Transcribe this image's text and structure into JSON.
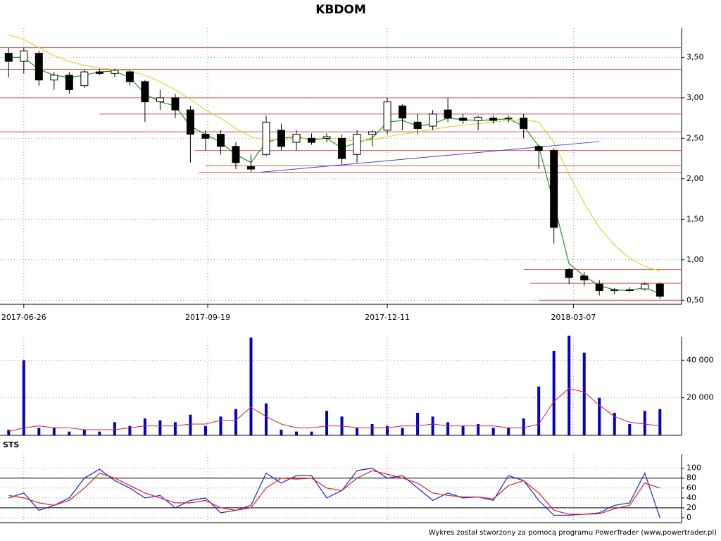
{
  "chart_data": [
    {
      "type": "candlestick",
      "title": "KBDOM",
      "x": [
        "2017-06-19",
        "2017-06-26",
        "2017-07-03",
        "2017-07-10",
        "2017-07-17",
        "2017-07-24",
        "2017-07-31",
        "2017-08-07",
        "2017-08-14",
        "2017-08-21",
        "2017-08-28",
        "2017-09-04",
        "2017-09-11",
        "2017-09-18",
        "2017-09-25",
        "2017-10-02",
        "2017-10-09",
        "2017-10-16",
        "2017-10-23",
        "2017-10-30",
        "2017-11-06",
        "2017-11-13",
        "2017-11-20",
        "2017-11-27",
        "2017-12-04",
        "2017-12-11",
        "2017-12-18",
        "2017-12-25",
        "2018-01-01",
        "2018-01-08",
        "2018-01-15",
        "2018-01-22",
        "2018-01-29",
        "2018-02-05",
        "2018-02-12",
        "2018-02-19",
        "2018-02-26",
        "2018-03-05",
        "2018-03-12",
        "2018-03-19",
        "2018-03-26",
        "2018-04-02",
        "2018-04-09",
        "2018-04-16"
      ],
      "open": [
        3.55,
        3.45,
        3.55,
        3.22,
        3.28,
        3.15,
        3.32,
        3.3,
        3.32,
        3.2,
        2.95,
        3.0,
        2.85,
        2.55,
        2.55,
        2.4,
        2.15,
        2.3,
        2.6,
        2.45,
        2.5,
        2.5,
        2.5,
        2.3,
        2.55,
        2.6,
        2.9,
        2.7,
        2.65,
        2.85,
        2.75,
        2.72,
        2.75,
        2.74,
        2.75,
        2.4,
        2.35,
        0.88,
        0.8,
        0.7,
        0.62,
        0.63,
        0.64,
        0.7
      ],
      "high": [
        3.62,
        3.62,
        3.58,
        3.32,
        3.32,
        3.35,
        3.36,
        3.36,
        3.34,
        3.22,
        3.1,
        3.05,
        2.9,
        2.6,
        2.6,
        2.45,
        2.3,
        2.78,
        2.68,
        2.6,
        2.56,
        2.56,
        2.55,
        2.6,
        2.6,
        3.0,
        2.92,
        2.8,
        2.85,
        3.0,
        2.8,
        2.78,
        2.78,
        2.78,
        2.8,
        2.42,
        2.38,
        0.9,
        0.85,
        0.75,
        0.65,
        0.66,
        0.72,
        0.72
      ],
      "low": [
        3.25,
        3.3,
        3.15,
        3.1,
        3.05,
        3.12,
        3.28,
        3.26,
        3.15,
        2.7,
        2.85,
        2.75,
        2.2,
        2.35,
        2.3,
        2.12,
        2.08,
        2.28,
        2.35,
        2.35,
        2.42,
        2.45,
        2.18,
        2.2,
        2.4,
        2.55,
        2.6,
        2.55,
        2.6,
        2.7,
        2.68,
        2.6,
        2.68,
        2.7,
        2.5,
        2.12,
        1.2,
        0.7,
        0.68,
        0.56,
        0.58,
        0.6,
        0.62,
        0.52
      ],
      "close": [
        3.45,
        3.58,
        3.22,
        3.28,
        3.1,
        3.32,
        3.3,
        3.34,
        3.2,
        2.95,
        3.0,
        2.85,
        2.55,
        2.5,
        2.4,
        2.2,
        2.12,
        2.7,
        2.4,
        2.55,
        2.45,
        2.52,
        2.25,
        2.55,
        2.58,
        2.95,
        2.75,
        2.62,
        2.8,
        2.75,
        2.72,
        2.76,
        2.72,
        2.75,
        2.62,
        2.35,
        1.4,
        0.78,
        0.75,
        0.62,
        0.63,
        0.62,
        0.7,
        0.55
      ],
      "ma": [
        {
          "color": "#1a9a1a",
          "values": [
            3.5,
            3.5,
            3.35,
            3.28,
            3.25,
            3.28,
            3.32,
            3.33,
            3.25,
            3.05,
            2.95,
            2.9,
            2.65,
            2.55,
            2.45,
            2.3,
            2.2,
            2.45,
            2.5,
            2.52,
            2.48,
            2.5,
            2.38,
            2.45,
            2.5,
            2.7,
            2.72,
            2.65,
            2.68,
            2.75,
            2.73,
            2.72,
            2.73,
            2.74,
            2.65,
            2.4,
            1.7,
            0.95,
            0.8,
            0.68,
            0.63,
            0.62,
            0.66,
            0.58
          ]
        },
        {
          "color": "#d8d83a",
          "values": [
            3.78,
            3.72,
            3.62,
            3.52,
            3.45,
            3.4,
            3.37,
            3.35,
            3.33,
            3.28,
            3.2,
            3.1,
            2.98,
            2.85,
            2.75,
            2.62,
            2.52,
            2.48,
            2.48,
            2.5,
            2.5,
            2.5,
            2.48,
            2.47,
            2.48,
            2.52,
            2.55,
            2.58,
            2.61,
            2.64,
            2.66,
            2.68,
            2.7,
            2.72,
            2.73,
            2.7,
            2.45,
            2.05,
            1.7,
            1.4,
            1.18,
            1.02,
            0.92,
            0.86
          ]
        }
      ],
      "levels_color": "#e05050",
      "levels": [
        {
          "value": 3.62,
          "from": "2017-06-15"
        },
        {
          "value": 3.35,
          "from": "2017-06-15"
        },
        {
          "value": 3.0,
          "from": "2017-06-15"
        },
        {
          "value": 2.8,
          "from": "2017-07-31"
        },
        {
          "value": 2.58,
          "from": "2017-06-15"
        },
        {
          "value": 2.35,
          "from": "2017-09-13"
        },
        {
          "value": 2.16,
          "from": "2017-09-18"
        },
        {
          "value": 2.08,
          "from": "2017-09-15"
        },
        {
          "value": 0.88,
          "from": "2018-02-12"
        },
        {
          "value": 0.71,
          "from": "2018-02-15"
        },
        {
          "value": 0.5,
          "from": "2018-02-19"
        }
      ],
      "trend": {
        "color": "#4040e0",
        "x": [
          "2017-10-13",
          "2018-03-19"
        ],
        "y": [
          2.08,
          2.46
        ]
      },
      "xlim": [
        "2017-06-15",
        "2018-04-26"
      ],
      "xticks": [
        "2017-06-26",
        "2017-09-19",
        "2017-12-11",
        "2018-03-07"
      ],
      "ylim": [
        0.45,
        3.86
      ],
      "yticks": [
        {
          "value": 0.5,
          "label": "0,50"
        },
        {
          "value": 1.0,
          "label": "1,00"
        },
        {
          "value": 1.5,
          "label": "1,50"
        },
        {
          "value": 2.0,
          "label": "2,00"
        },
        {
          "value": 2.5,
          "label": "2,50"
        },
        {
          "value": 3.0,
          "label": "3,00"
        },
        {
          "value": 3.5,
          "label": "3,50"
        }
      ],
      "grid": true
    },
    {
      "type": "bar",
      "color": "#0000cc",
      "values": [
        3000,
        40000,
        4000,
        4000,
        2000,
        3000,
        2000,
        7000,
        5000,
        9000,
        8000,
        7000,
        11000,
        5000,
        10000,
        14000,
        52000,
        17000,
        3000,
        2000,
        2000,
        13000,
        10000,
        4000,
        6000,
        5000,
        4000,
        12000,
        10000,
        7000,
        5000,
        6000,
        4000,
        4000,
        9000,
        26000,
        45000,
        53000,
        44000,
        20000,
        12000,
        6000,
        13000,
        14000
      ],
      "ma_color": "#e02020",
      "ma_values": [
        2000,
        4000,
        5000,
        4000,
        4000,
        3000,
        3000,
        3000,
        4000,
        5000,
        5000,
        5000,
        6000,
        6000,
        8000,
        8000,
        15000,
        10000,
        6000,
        4000,
        4000,
        5000,
        5000,
        4000,
        4000,
        4000,
        5000,
        5000,
        6000,
        5000,
        5000,
        5000,
        5000,
        4000,
        4000,
        6000,
        18000,
        25000,
        23000,
        16000,
        10000,
        7000,
        6000,
        5000
      ],
      "ylim": [
        0,
        52500
      ],
      "yticks": [
        {
          "value": 20000,
          "label": "20 000"
        },
        {
          "value": 40000,
          "label": "40 000"
        }
      ],
      "grid": true
    },
    {
      "type": "line",
      "title": "STS",
      "series": [
        {
          "color": "#2020d0",
          "values": [
            40,
            50,
            15,
            25,
            40,
            80,
            98,
            75,
            60,
            40,
            45,
            20,
            35,
            40,
            10,
            15,
            25,
            90,
            70,
            85,
            85,
            40,
            55,
            95,
            100,
            80,
            85,
            60,
            35,
            50,
            40,
            42,
            35,
            85,
            75,
            35,
            5,
            5,
            7,
            10,
            25,
            30,
            90,
            0
          ]
        },
        {
          "color": "#e02020",
          "values": [
            45,
            40,
            30,
            25,
            35,
            60,
            90,
            80,
            65,
            50,
            40,
            30,
            30,
            35,
            20,
            15,
            20,
            60,
            80,
            78,
            80,
            60,
            55,
            80,
            95,
            88,
            80,
            70,
            50,
            45,
            42,
            42,
            38,
            65,
            75,
            50,
            15,
            7,
            7,
            8,
            18,
            25,
            70,
            60
          ]
        }
      ],
      "levels": [
        20,
        80
      ],
      "ylim": [
        -10,
        128
      ],
      "yticks": [
        0,
        20,
        40,
        60,
        80,
        100
      ],
      "grid": true
    }
  ],
  "footer": "Wykres został stworzony za pomocą programu PowerTrader (www.powertrader.pl)"
}
